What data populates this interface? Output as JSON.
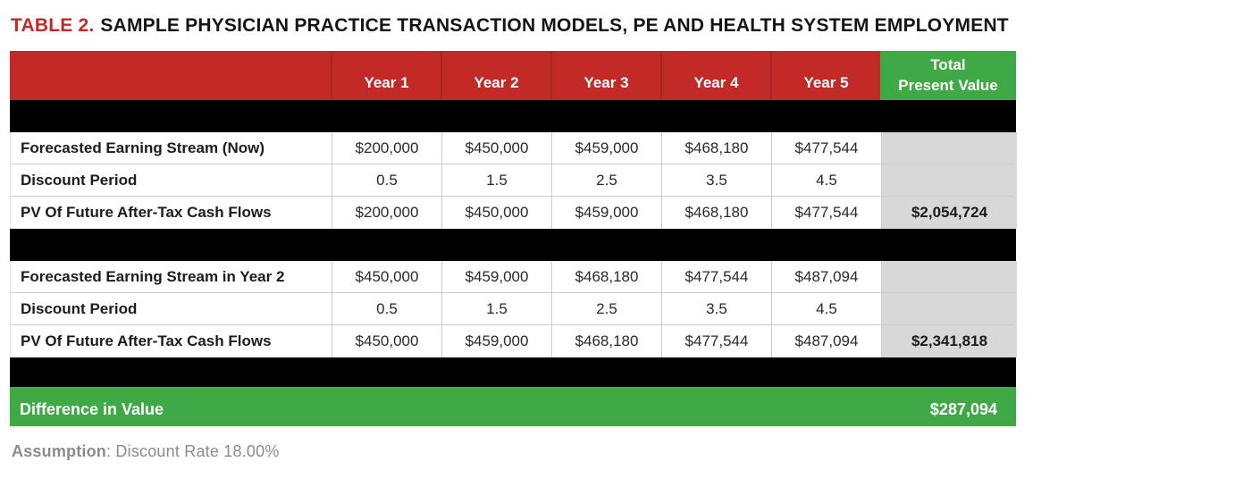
{
  "title": {
    "tag": "TABLE 2.",
    "text": "SAMPLE PHYSICIAN PRACTICE TRANSACTION MODELS, PE AND HEALTH SYSTEM EMPLOYMENT"
  },
  "table": {
    "corner_label": "",
    "year_headers": [
      "Year 1",
      "Year 2",
      "Year 3",
      "Year 4",
      "Year 5"
    ],
    "total_header_line1": "Total",
    "total_header_line2": "Present Value",
    "sections": [
      {
        "rows": [
          {
            "label": "Forecasted Earning Stream (Now)",
            "values": [
              "$200,000",
              "$450,000",
              "$459,000",
              "$468,180",
              "$477,544"
            ],
            "total": ""
          },
          {
            "label": "Discount Period",
            "values": [
              "0.5",
              "1.5",
              "2.5",
              "3.5",
              "4.5"
            ],
            "total": ""
          },
          {
            "label": "PV Of Future After-Tax Cash Flows",
            "values": [
              "$200,000",
              "$450,000",
              "$459,000",
              "$468,180",
              "$477,544"
            ],
            "total": "$2,054,724"
          }
        ]
      },
      {
        "rows": [
          {
            "label": "Forecasted Earning Stream in Year 2",
            "values": [
              "$450,000",
              "$459,000",
              "$468,180",
              "$477,544",
              "$487,094"
            ],
            "total": ""
          },
          {
            "label": "Discount Period",
            "values": [
              "0.5",
              "1.5",
              "2.5",
              "3.5",
              "4.5"
            ],
            "total": ""
          },
          {
            "label": "PV Of Future After-Tax Cash Flows",
            "values": [
              "$450,000",
              "$459,000",
              "$468,180",
              "$477,544",
              "$487,094"
            ],
            "total": "$2,341,818"
          }
        ]
      }
    ],
    "summary": {
      "label": "Difference in Value",
      "total": "$287,094"
    }
  },
  "footer": {
    "assumption_label": "Assumption",
    "assumption_text": ": Discount Rate 18.00%"
  },
  "colors": {
    "header_red": "#c22a28",
    "accent_green": "#3fa945",
    "total_column_gray": "#d8d8d8",
    "redacted_black": "#000000",
    "footer_gray": "#8b8b8b"
  }
}
